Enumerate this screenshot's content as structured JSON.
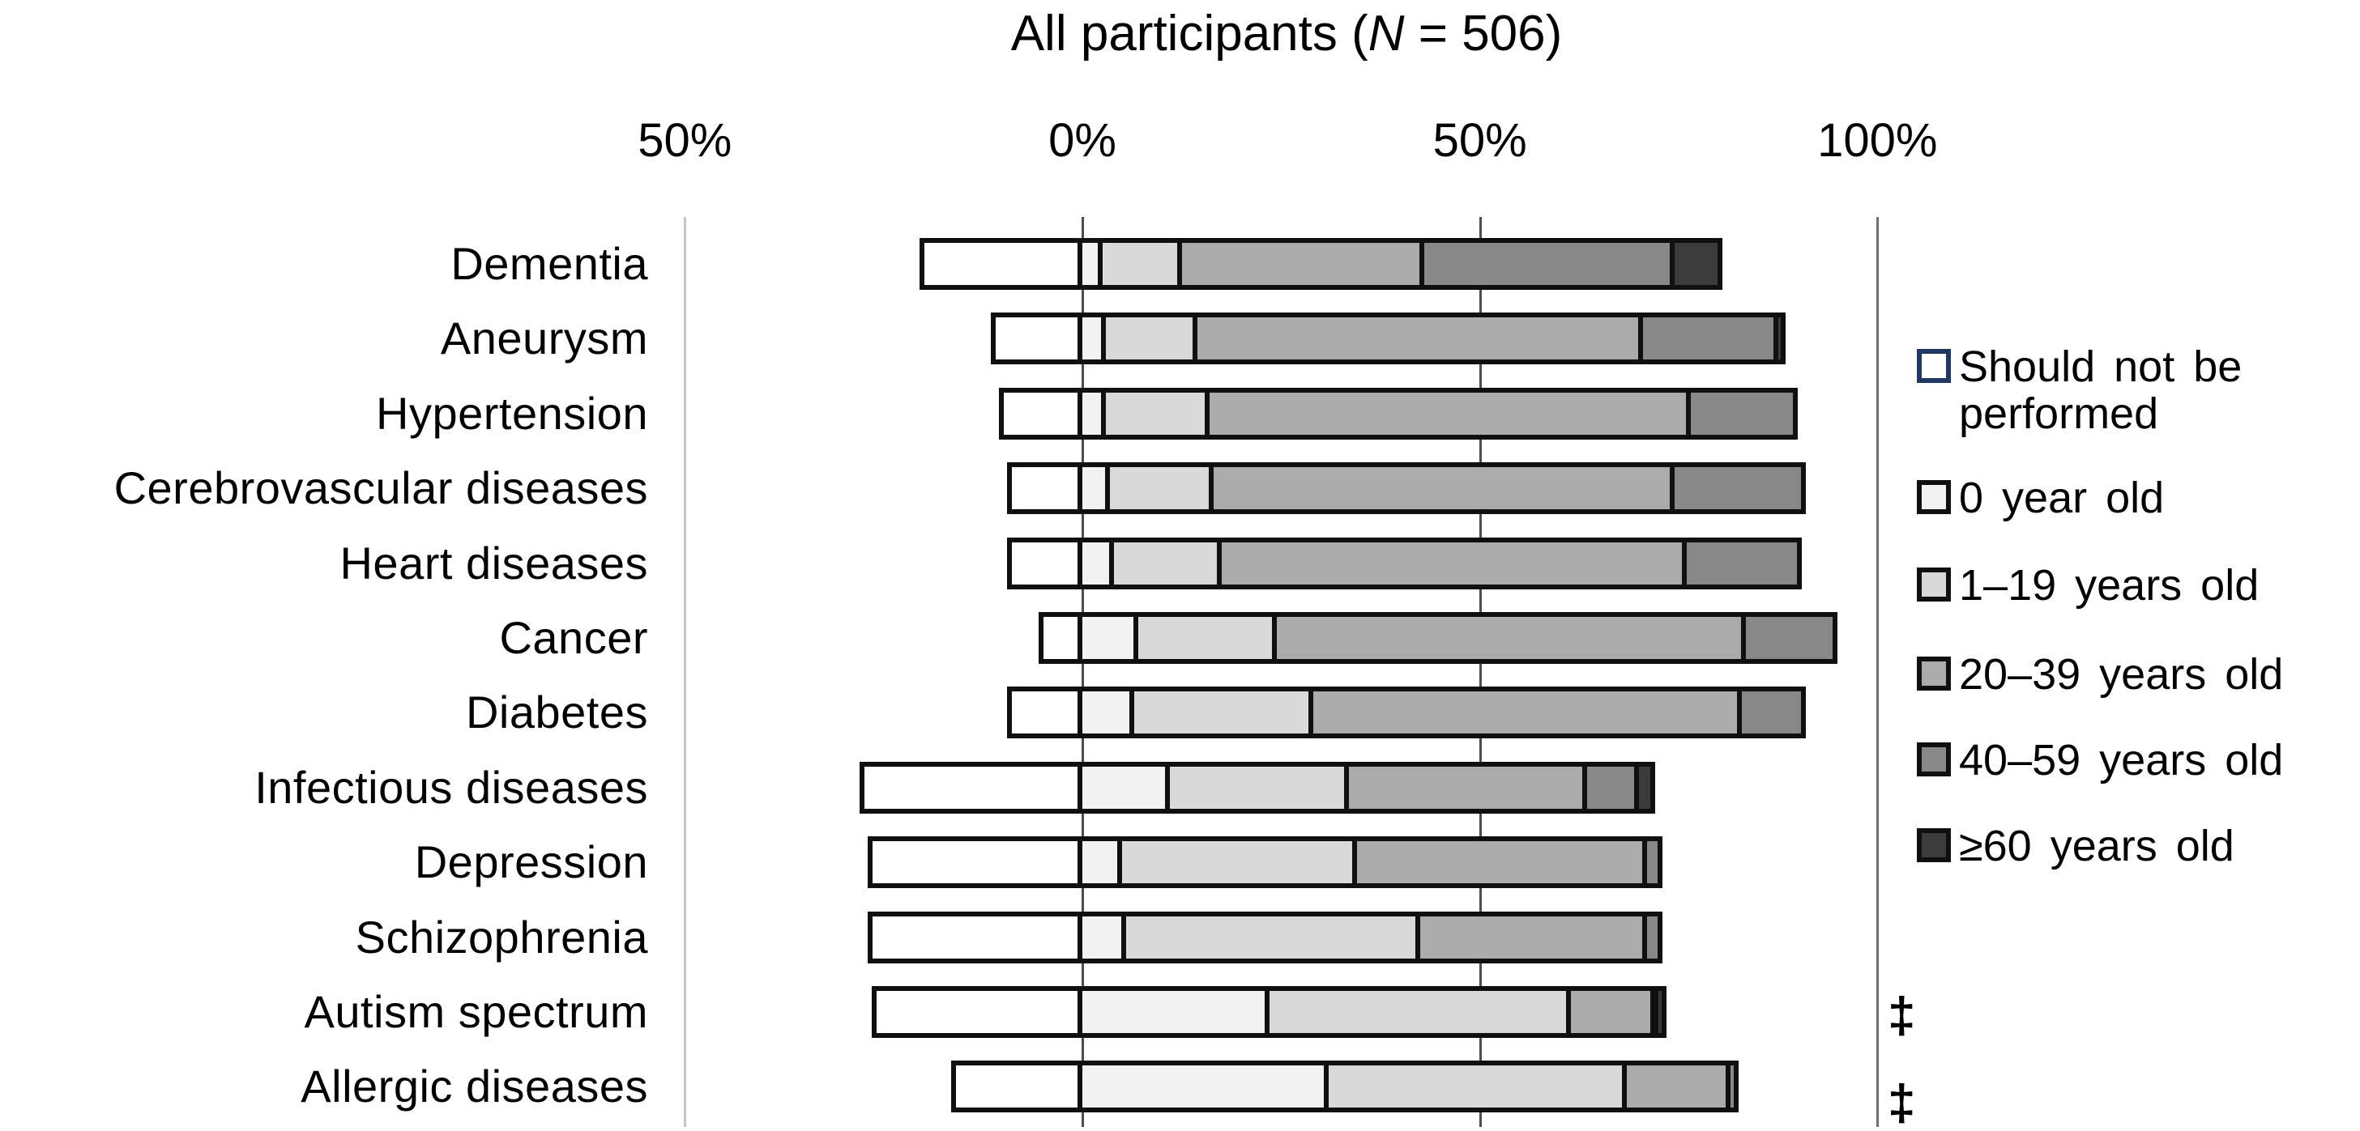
{
  "title": {
    "prefix": "All participants (",
    "n_italic": "N",
    "suffix": " = 506)"
  },
  "chart_data": {
    "type": "bar",
    "variant": "horizontal-diverging-stacked",
    "unit": "percent",
    "title": "All participants (N = 506)",
    "x_axis": {
      "range": [
        -50,
        100
      ],
      "ticks": [
        {
          "label": "50%",
          "value": -50,
          "line_color": "#c6c6c6"
        },
        {
          "label": "0%",
          "value": 0,
          "line_color": "#4d4d4d"
        },
        {
          "label": "50%",
          "value": 50,
          "line_color": "#4d4d4d"
        },
        {
          "label": "100%",
          "value": 100,
          "line_color": "#6f6f6f"
        }
      ],
      "gridlines": true
    },
    "categories": [
      "Dementia",
      "Aneurysm",
      "Hypertension",
      "Cerebrovascular diseases",
      "Heart diseases",
      "Cancer",
      "Diabetes",
      "Infectious diseases",
      "Depression",
      "Schizophrenia",
      "Autism spectrum",
      "Allergic diseases"
    ],
    "legend": [
      {
        "label": "Should not be performed",
        "label_lines": [
          "Should not be",
          "performed"
        ],
        "color": "#ffffff",
        "border_color": "#1f3864",
        "direction": "negative"
      },
      {
        "label": "0 year old",
        "label_lines": [
          "0 year old"
        ],
        "color": "#f2f2f2",
        "border_color": "#101010",
        "direction": "positive"
      },
      {
        "label": "1–19 years old",
        "label_lines": [
          "1–19 years old"
        ],
        "color": "#d9d9d9",
        "border_color": "#101010",
        "direction": "positive"
      },
      {
        "label": "20–39 years old",
        "label_lines": [
          "20–39 years old"
        ],
        "color": "#ababab",
        "border_color": "#101010",
        "direction": "positive"
      },
      {
        "label": "40–59 years old",
        "label_lines": [
          "40–59 years old"
        ],
        "color": "#888888",
        "border_color": "#101010",
        "direction": "positive"
      },
      {
        "label": "≥60 years old",
        "label_lines": [
          "≥60 years old"
        ],
        "color": "#3b3b3b",
        "border_color": "#101010",
        "direction": "positive"
      }
    ],
    "series": [
      {
        "name": "Should not be performed",
        "values": [
          20.5,
          11.5,
          10.5,
          9.5,
          9.5,
          5.5,
          9.5,
          28,
          27,
          27,
          26.5,
          16.5
        ]
      },
      {
        "name": "0 year old",
        "values": [
          2.5,
          3,
          3,
          3.5,
          4,
          7,
          6.5,
          11,
          5,
          5.5,
          23.5,
          31
        ]
      },
      {
        "name": "1–19 years old",
        "values": [
          10,
          11.5,
          13,
          13,
          13.5,
          17.5,
          22.5,
          22.5,
          29.5,
          37,
          38,
          37.5
        ]
      },
      {
        "name": "20–39 years old",
        "values": [
          30.5,
          56,
          60.5,
          58,
          58.5,
          59,
          54,
          30,
          36.5,
          28.5,
          10.5,
          13
        ]
      },
      {
        "name": "40–59 years old",
        "values": [
          31.5,
          17,
          13.5,
          16.5,
          14.5,
          11.5,
          8,
          6.5,
          2,
          2,
          0.5,
          1
        ]
      },
      {
        "name": "≥60 years old",
        "values": [
          6,
          1,
          0,
          0,
          0,
          0,
          0,
          2,
          0,
          0,
          1,
          0
        ]
      }
    ],
    "annotations": [
      {
        "symbol": "‡",
        "row": "Autism spectrum"
      },
      {
        "symbol": "‡",
        "row": "Allergic diseases"
      }
    ]
  }
}
